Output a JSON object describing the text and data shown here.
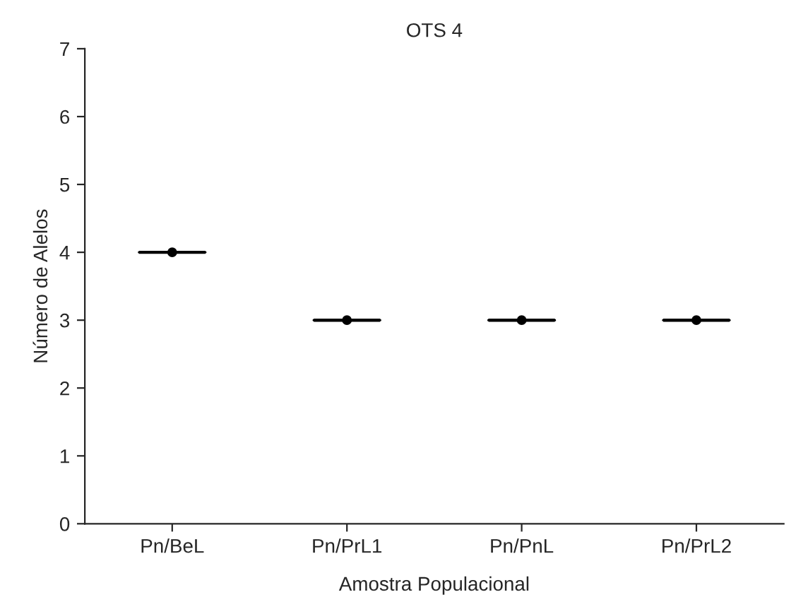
{
  "chart_data": {
    "type": "box",
    "title": "OTS 4",
    "xlabel": "Amostra Populacional",
    "ylabel": "Número de Alelos",
    "categories": [
      "Pn/BeL",
      "Pn/PrL1",
      "Pn/PnL",
      "Pn/PrL2"
    ],
    "boxes": [
      {
        "low": 4,
        "q1": 4,
        "median": 4,
        "q3": 4,
        "high": 4,
        "mean": 4
      },
      {
        "low": 3,
        "q1": 3,
        "median": 3,
        "q3": 3,
        "high": 3,
        "mean": 3
      },
      {
        "low": 3,
        "q1": 3,
        "median": 3,
        "q3": 3,
        "high": 3,
        "mean": 3
      },
      {
        "low": 3,
        "q1": 3,
        "median": 3,
        "q3": 3,
        "high": 3,
        "mean": 3
      }
    ],
    "ylim": [
      0,
      7
    ],
    "yticks": [
      0,
      1,
      2,
      3,
      4,
      5,
      6,
      7
    ],
    "grid": false
  }
}
